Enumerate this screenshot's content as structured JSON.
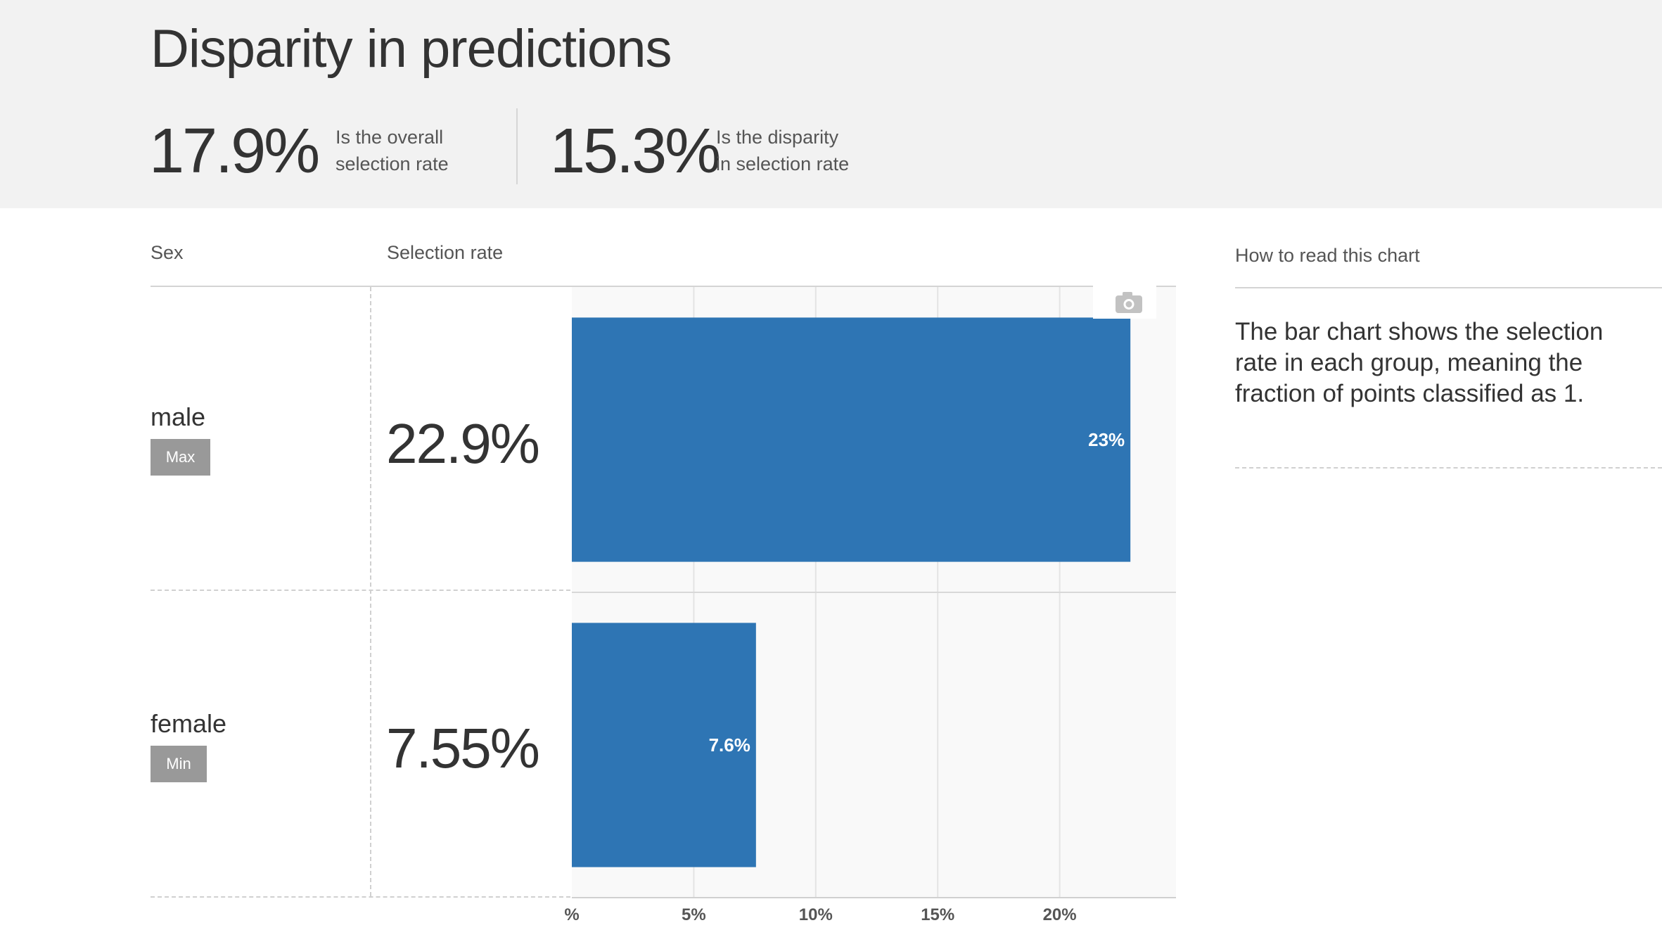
{
  "header": {
    "title": "Disparity in predictions",
    "overall": {
      "value": "17.9%",
      "description": "Is the overall selection rate"
    },
    "disparity": {
      "value": "15.3%",
      "description": "Is the disparity in selection rate"
    }
  },
  "table": {
    "group_header": "Sex",
    "rate_header": "Selection rate",
    "rows": [
      {
        "name": "male",
        "badge": "Max",
        "rate": "22.9%"
      },
      {
        "name": "female",
        "badge": "Min",
        "rate": "7.55%"
      }
    ]
  },
  "sidebar": {
    "title": "How to read this chart",
    "text": "The bar chart shows the selection rate in each group, meaning the fraction of points classified as 1."
  },
  "icons": {
    "camera": "camera-icon"
  },
  "colors": {
    "bar": "#2e75b4",
    "header_bg": "#f2f2f2",
    "badge": "#999999"
  },
  "chart_data": {
    "type": "bar",
    "orientation": "horizontal",
    "categories": [
      "male",
      "female"
    ],
    "values": [
      22.9,
      7.55
    ],
    "data_labels": [
      "23%",
      "7.6%"
    ],
    "x_ticks": [
      0,
      5,
      10,
      15,
      20
    ],
    "x_tick_labels": [
      "%",
      "5%",
      "10%",
      "15%",
      "20%"
    ],
    "xlim": [
      0,
      23.5
    ],
    "grid": true
  }
}
